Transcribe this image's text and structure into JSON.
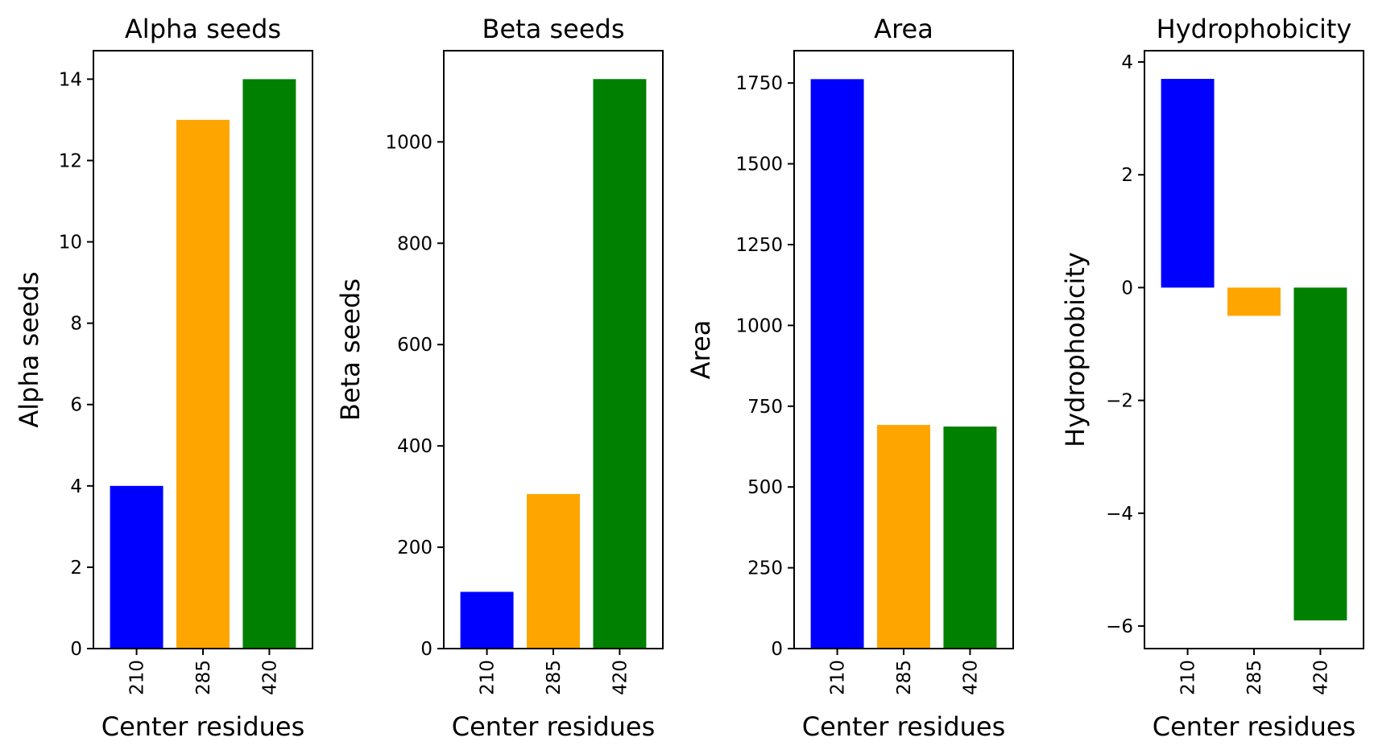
{
  "chart_data": [
    {
      "type": "bar",
      "title": "Alpha seeds",
      "xlabel": "Center residues",
      "ylabel": "Alpha seeds",
      "categories": [
        "210",
        "285",
        "420"
      ],
      "values": [
        4,
        13,
        14
      ],
      "colors": [
        "#0000ff",
        "#ffa500",
        "#008000"
      ],
      "ylim": [
        0,
        14.7
      ],
      "yticks": [
        0,
        2,
        4,
        6,
        8,
        10,
        12,
        14
      ],
      "ytick_labels": [
        "0",
        "2",
        "4",
        "6",
        "8",
        "10",
        "12",
        "14"
      ],
      "grid": false
    },
    {
      "type": "bar",
      "title": "Beta seeds",
      "xlabel": "Center residues",
      "ylabel": "Beta seeds",
      "categories": [
        "210",
        "285",
        "420"
      ],
      "values": [
        112,
        305,
        1124
      ],
      "colors": [
        "#0000ff",
        "#ffa500",
        "#008000"
      ],
      "ylim": [
        0,
        1180
      ],
      "yticks": [
        0,
        200,
        400,
        600,
        800,
        1000
      ],
      "ytick_labels": [
        "0",
        "200",
        "400",
        "600",
        "800",
        "1000"
      ],
      "grid": false
    },
    {
      "type": "bar",
      "title": "Area",
      "xlabel": "Center residues",
      "ylabel": "Area",
      "categories": [
        "210",
        "285",
        "420"
      ],
      "values": [
        1762,
        692,
        687
      ],
      "colors": [
        "#0000ff",
        "#ffa500",
        "#008000"
      ],
      "ylim": [
        0,
        1850
      ],
      "yticks": [
        0,
        250,
        500,
        750,
        1000,
        1250,
        1500,
        1750
      ],
      "ytick_labels": [
        "0",
        "250",
        "500",
        "750",
        "1000",
        "1250",
        "1500",
        "1750"
      ],
      "grid": false
    },
    {
      "type": "bar",
      "title": "Hydrophobicity",
      "xlabel": "Center residues",
      "ylabel": "Hydrophobicity",
      "categories": [
        "210",
        "285",
        "420"
      ],
      "values": [
        3.7,
        -0.5,
        -5.9
      ],
      "colors": [
        "#0000ff",
        "#ffa500",
        "#008000"
      ],
      "ylim": [
        -6.4,
        4.2
      ],
      "yticks": [
        -6,
        -4,
        -2,
        0,
        2,
        4
      ],
      "ytick_labels": [
        "−6",
        "−4",
        "−2",
        "0",
        "2",
        "4"
      ],
      "grid": false
    }
  ]
}
